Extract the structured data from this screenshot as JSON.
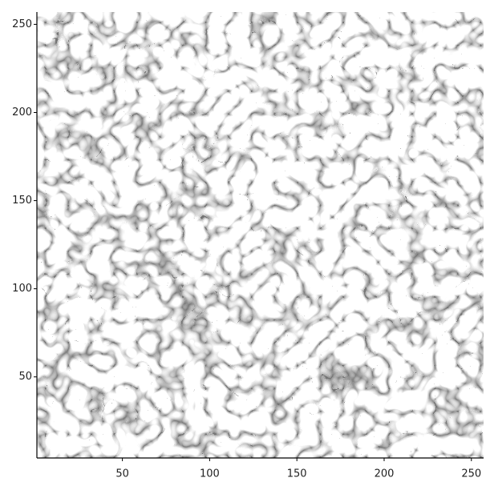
{
  "chart_data": {
    "type": "image",
    "xlim": [
      1,
      257
    ],
    "ylim": [
      4,
      257
    ],
    "xticks": [
      50,
      100,
      150,
      200,
      250
    ],
    "yticks": [
      50,
      100,
      150,
      200,
      250
    ]
  }
}
